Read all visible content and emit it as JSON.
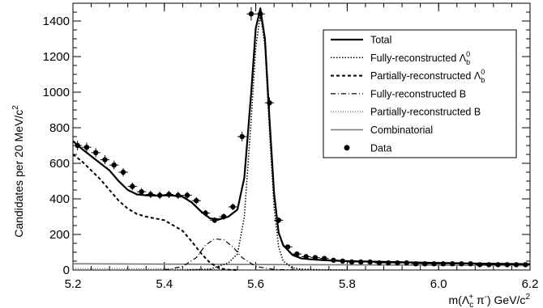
{
  "chart_data": {
    "type": "line",
    "xlabel_main": "m(Λ",
    "xlabel_sub": "c",
    "xlabel_sup": "+",
    "xlabel_mid": " π",
    "xlabel_sup2": "-",
    "xlabel_tail": ") GeV/c",
    "xlabel_pow": "2",
    "ylabel": "Candidates per 20 MeV/c",
    "ylabel_pow": "2",
    "xlim": [
      5.2,
      6.2
    ],
    "ylim": [
      0,
      1500
    ],
    "xticks": [
      5.2,
      5.4,
      5.6,
      5.8,
      6.0,
      6.2
    ],
    "xtick_labels": [
      "5.2",
      "5.4",
      "5.6",
      "5.8",
      "6.0",
      "6.2"
    ],
    "yticks": [
      0,
      200,
      400,
      600,
      800,
      1000,
      1200,
      1400
    ],
    "ytick_labels": [
      "0",
      "200",
      "400",
      "600",
      "800",
      "1000",
      "1200",
      "1400"
    ],
    "legend": {
      "placement": "top-right",
      "entries": [
        {
          "label": "Total",
          "style": "solid"
        },
        {
          "label": "Fully-reconstructed Λ",
          "sub": "b",
          "sup": "0",
          "style": "dotted"
        },
        {
          "label": "Partially-reconstructed Λ",
          "sub": "b",
          "sup": "0",
          "style": "dashed"
        },
        {
          "label": "Fully-reconstructed B",
          "style": "dashdot"
        },
        {
          "label": "Partially-reconstructed B",
          "style": "fine-dotted"
        },
        {
          "label": "Combinatorial",
          "style": "grey-solid"
        },
        {
          "label": "Data",
          "style": "marker"
        }
      ]
    },
    "series": [
      {
        "name": "Total",
        "x": [
          5.2,
          5.22,
          5.24,
          5.26,
          5.28,
          5.3,
          5.32,
          5.34,
          5.36,
          5.38,
          5.4,
          5.42,
          5.44,
          5.46,
          5.48,
          5.5,
          5.52,
          5.54,
          5.56,
          5.575,
          5.59,
          5.6,
          5.61,
          5.62,
          5.63,
          5.64,
          5.65,
          5.66,
          5.68,
          5.7,
          5.72,
          5.75,
          5.8,
          5.9,
          6.0,
          6.1,
          6.2
        ],
        "y": [
          725,
          680,
          640,
          600,
          560,
          500,
          450,
          425,
          420,
          418,
          420,
          418,
          412,
          380,
          330,
          290,
          285,
          300,
          340,
          520,
          1000,
          1360,
          1470,
          1300,
          850,
          430,
          210,
          140,
          85,
          65,
          60,
          55,
          50,
          45,
          40,
          36,
          33
        ]
      },
      {
        "name": "Fully-reconstructed Λb0",
        "x": [
          5.45,
          5.5,
          5.54,
          5.56,
          5.575,
          5.59,
          5.6,
          5.61,
          5.62,
          5.63,
          5.64,
          5.65,
          5.66,
          5.68,
          5.7,
          5.75,
          5.8
        ],
        "y": [
          0,
          5,
          40,
          90,
          300,
          850,
          1250,
          1440,
          1260,
          780,
          350,
          130,
          50,
          12,
          5,
          1,
          0
        ]
      },
      {
        "name": "Partially-reconstructed Λb0",
        "x": [
          5.2,
          5.22,
          5.24,
          5.26,
          5.28,
          5.3,
          5.32,
          5.34,
          5.36,
          5.38,
          5.4,
          5.42,
          5.44,
          5.46,
          5.48,
          5.5,
          5.52,
          5.54,
          5.56
        ],
        "y": [
          650,
          610,
          560,
          510,
          450,
          390,
          345,
          315,
          300,
          290,
          280,
          250,
          220,
          160,
          95,
          40,
          10,
          2,
          0
        ]
      },
      {
        "name": "Fully-reconstructed B",
        "x": [
          5.4,
          5.44,
          5.47,
          5.49,
          5.51,
          5.53,
          5.55,
          5.57,
          5.6,
          5.64,
          5.7
        ],
        "y": [
          0,
          20,
          70,
          140,
          175,
          170,
          130,
          70,
          20,
          3,
          0
        ]
      },
      {
        "name": "Partially-reconstructed B",
        "x": [
          5.2,
          5.3,
          5.4,
          5.5,
          5.55,
          5.6
        ],
        "y": [
          8,
          8,
          6,
          4,
          2,
          0
        ]
      },
      {
        "name": "Combinatorial",
        "x": [
          5.2,
          5.4,
          5.6,
          5.8,
          6.0,
          6.2
        ],
        "y": [
          35,
          33,
          31,
          29,
          27,
          25
        ]
      }
    ],
    "data_points": {
      "name": "Data",
      "x": [
        5.21,
        5.23,
        5.25,
        5.27,
        5.29,
        5.31,
        5.33,
        5.35,
        5.37,
        5.39,
        5.41,
        5.43,
        5.45,
        5.47,
        5.49,
        5.51,
        5.53,
        5.55,
        5.57,
        5.59,
        5.61,
        5.63,
        5.65,
        5.67,
        5.69,
        5.71,
        5.73,
        5.75,
        5.77,
        5.79,
        5.81,
        5.83,
        5.85,
        5.87,
        5.89,
        5.91,
        5.93,
        5.95,
        5.97,
        5.99,
        6.01,
        6.03,
        6.05,
        6.07,
        6.09,
        6.11,
        6.13,
        6.15,
        6.17,
        6.19
      ],
      "y": [
        700,
        690,
        660,
        620,
        590,
        550,
        470,
        440,
        425,
        420,
        425,
        420,
        420,
        390,
        320,
        280,
        300,
        355,
        750,
        1440,
        1440,
        940,
        280,
        130,
        90,
        75,
        70,
        65,
        55,
        50,
        45,
        45,
        45,
        40,
        40,
        40,
        40,
        35,
        35,
        35,
        35,
        35,
        35,
        35,
        30,
        30,
        30,
        30,
        30,
        30
      ]
    }
  }
}
